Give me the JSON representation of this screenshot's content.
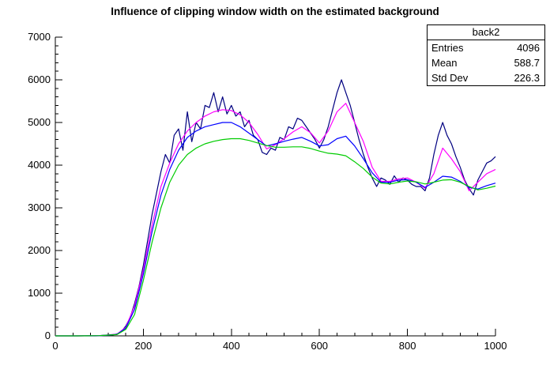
{
  "title": "Influence of clipping window width on the estimated background",
  "stats_box": {
    "title": "back2",
    "rows": [
      {
        "label": "Entries",
        "value": "4096"
      },
      {
        "label": "Mean",
        "value": "588.7"
      },
      {
        "label": "Std Dev",
        "value": "226.3"
      }
    ]
  },
  "chart_data": {
    "type": "line",
    "title": "Influence of clipping window width on the estimated background",
    "xlabel": "",
    "ylabel": "",
    "xlim": [
      0,
      1000
    ],
    "ylim": [
      0,
      7000
    ],
    "x_ticks": [
      0,
      200,
      400,
      600,
      800,
      1000
    ],
    "x_minor_step": 40,
    "y_ticks": [
      0,
      1000,
      2000,
      3000,
      4000,
      5000,
      6000,
      7000
    ],
    "y_minor_step": 200,
    "grid": false,
    "legend": "none",
    "axis_color": "#000000",
    "series": [
      {
        "name": "histogram-back2",
        "color": "#000080",
        "x_start": 0,
        "x_step": 10,
        "y": [
          0,
          0,
          0,
          0,
          0,
          0,
          0,
          0,
          0,
          0,
          2,
          5,
          10,
          20,
          45,
          100,
          230,
          430,
          760,
          1150,
          1650,
          2250,
          2850,
          3350,
          3850,
          4250,
          4050,
          4700,
          4850,
          4350,
          5250,
          4550,
          5000,
          4850,
          5400,
          5350,
          5700,
          5250,
          5600,
          5200,
          5400,
          5150,
          5250,
          4900,
          5050,
          4700,
          4600,
          4300,
          4250,
          4400,
          4350,
          4650,
          4600,
          4900,
          4850,
          5100,
          5050,
          4900,
          4750,
          4600,
          4400,
          4600,
          4900,
          5300,
          5700,
          6000,
          5700,
          5400,
          5000,
          4600,
          4250,
          3950,
          3700,
          3500,
          3700,
          3650,
          3550,
          3750,
          3600,
          3700,
          3650,
          3550,
          3500,
          3500,
          3400,
          3700,
          4250,
          4700,
          5000,
          4700,
          4500,
          4200,
          3950,
          3650,
          3450,
          3300,
          3650,
          3850,
          4050,
          4100,
          4200
        ]
      },
      {
        "name": "background-estimate-small-window",
        "color": "#ff00ff",
        "x": [
          0,
          50,
          100,
          140,
          160,
          180,
          200,
          220,
          240,
          260,
          280,
          300,
          320,
          340,
          360,
          380,
          400,
          420,
          440,
          460,
          480,
          500,
          520,
          540,
          560,
          580,
          600,
          620,
          640,
          660,
          680,
          700,
          720,
          740,
          760,
          780,
          800,
          820,
          840,
          860,
          880,
          900,
          920,
          940,
          960,
          980,
          1000
        ],
        "y": [
          0,
          0,
          5,
          40,
          200,
          700,
          1550,
          2600,
          3500,
          4050,
          4500,
          4800,
          5000,
          5150,
          5250,
          5300,
          5280,
          5180,
          5000,
          4720,
          4380,
          4480,
          4620,
          4780,
          4900,
          4760,
          4520,
          4800,
          5250,
          5450,
          5000,
          4550,
          3950,
          3620,
          3620,
          3680,
          3700,
          3600,
          3460,
          3800,
          4400,
          4150,
          3850,
          3400,
          3600,
          3800,
          3900
        ]
      },
      {
        "name": "background-estimate-medium-window",
        "color": "#0000ff",
        "x": [
          0,
          50,
          100,
          140,
          160,
          180,
          200,
          220,
          240,
          260,
          280,
          300,
          320,
          340,
          360,
          380,
          400,
          420,
          440,
          460,
          480,
          500,
          520,
          540,
          560,
          580,
          600,
          620,
          640,
          660,
          680,
          700,
          720,
          740,
          760,
          780,
          800,
          820,
          840,
          860,
          880,
          900,
          920,
          940,
          960,
          980,
          1000
        ],
        "y": [
          0,
          0,
          5,
          35,
          180,
          620,
          1450,
          2450,
          3300,
          3900,
          4350,
          4650,
          4800,
          4900,
          4950,
          5000,
          5000,
          4900,
          4750,
          4600,
          4450,
          4500,
          4560,
          4610,
          4650,
          4560,
          4450,
          4480,
          4620,
          4680,
          4450,
          4150,
          3820,
          3600,
          3600,
          3650,
          3660,
          3600,
          3480,
          3600,
          3740,
          3720,
          3620,
          3480,
          3440,
          3520,
          3580
        ]
      },
      {
        "name": "background-estimate-large-window",
        "color": "#00cc00",
        "x": [
          0,
          50,
          100,
          140,
          160,
          180,
          200,
          220,
          240,
          260,
          280,
          300,
          320,
          340,
          360,
          380,
          400,
          420,
          440,
          460,
          480,
          500,
          520,
          540,
          560,
          580,
          600,
          620,
          640,
          660,
          680,
          700,
          720,
          740,
          760,
          780,
          800,
          820,
          840,
          860,
          880,
          900,
          920,
          940,
          960,
          980,
          1000
        ],
        "y": [
          0,
          0,
          5,
          30,
          150,
          500,
          1300,
          2200,
          3000,
          3600,
          4000,
          4250,
          4400,
          4500,
          4560,
          4600,
          4620,
          4620,
          4580,
          4520,
          4460,
          4420,
          4420,
          4430,
          4430,
          4390,
          4330,
          4280,
          4260,
          4220,
          4080,
          3920,
          3720,
          3580,
          3560,
          3600,
          3630,
          3610,
          3560,
          3600,
          3650,
          3660,
          3600,
          3500,
          3420,
          3460,
          3510
        ]
      }
    ]
  }
}
